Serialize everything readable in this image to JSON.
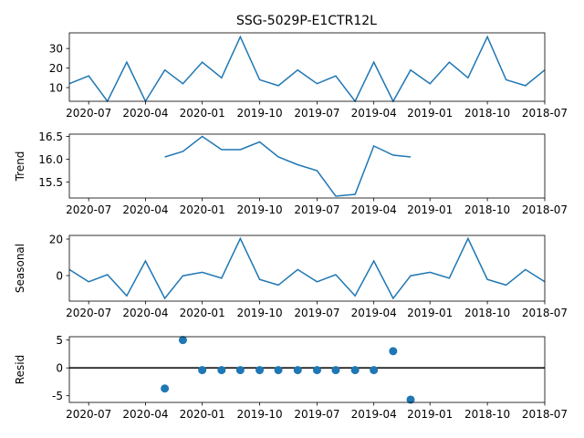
{
  "colors": {
    "series": "#1f77b4",
    "axes": "#000000",
    "zero_line": "#000000"
  },
  "chart_data": {
    "type": "line",
    "title": "SSG-5029P-E1CTR12L",
    "x_tick_labels": [
      "2020-07",
      "2020-04",
      "2020-01",
      "2019-10",
      "2019-07",
      "2019-04",
      "2019-01",
      "2018-10",
      "2018-07"
    ],
    "x_tick_dates": [
      "2020-07-01",
      "2020-04-01",
      "2020-01-01",
      "2019-10-01",
      "2019-07-01",
      "2019-04-01",
      "2019-01-01",
      "2018-10-01",
      "2018-07-01"
    ],
    "x_axis_inverted": true,
    "x": [
      "2020-08-01",
      "2020-07-01",
      "2020-06-01",
      "2020-05-01",
      "2020-04-01",
      "2020-03-01",
      "2020-02-01",
      "2020-01-01",
      "2019-12-01",
      "2019-11-01",
      "2019-10-01",
      "2019-09-01",
      "2019-08-01",
      "2019-07-01",
      "2019-06-01",
      "2019-05-01",
      "2019-04-01",
      "2019-03-01",
      "2019-02-01",
      "2019-01-01",
      "2018-12-01",
      "2018-11-01",
      "2018-10-01",
      "2018-09-01",
      "2018-08-01",
      "2018-07-01"
    ],
    "panels": [
      {
        "type": "line",
        "ylabel": "",
        "ylim": [
          3,
          38
        ],
        "yticks": [
          10,
          20,
          30
        ],
        "values": [
          12,
          16,
          3,
          23,
          3,
          19,
          12,
          23,
          15,
          36,
          14,
          11,
          19,
          12,
          16,
          3,
          23,
          3,
          19,
          12,
          23,
          15,
          36,
          14,
          11,
          19
        ]
      },
      {
        "type": "line",
        "ylabel": "Trend",
        "ylim": [
          15.15,
          16.55
        ],
        "yticks": [
          "15.5",
          "16.0",
          "16.5"
        ],
        "values": [
          null,
          null,
          null,
          null,
          null,
          16.05,
          16.17,
          16.5,
          16.21,
          16.21,
          16.38,
          16.05,
          15.88,
          15.75,
          15.19,
          15.23,
          16.29,
          16.09,
          16.05,
          null,
          null,
          null,
          null,
          null,
          null,
          null
        ]
      },
      {
        "type": "line",
        "ylabel": "Seasonal",
        "ylim": [
          -14,
          22
        ],
        "yticks": [
          0,
          20
        ],
        "values": [
          3.3,
          -3.4,
          0.5,
          -11.1,
          8,
          -12.5,
          -0.1,
          1.8,
          -1.4,
          20.3,
          -2.1,
          -5.2,
          3.3,
          -3.4,
          0.5,
          -11.1,
          8,
          -12.5,
          -0.1,
          1.8,
          -1.4,
          20.3,
          -2.1,
          -5.2,
          3.3,
          -3.4
        ]
      },
      {
        "type": "scatter",
        "ylabel": "Resid",
        "ylim": [
          -6.2,
          5.6
        ],
        "yticks": [
          -5,
          0,
          5
        ],
        "zero_line": true,
        "values": [
          null,
          null,
          null,
          null,
          null,
          -3.7,
          5,
          -0.4,
          -0.4,
          -0.4,
          -0.4,
          -0.4,
          -0.4,
          -0.4,
          -0.4,
          -0.4,
          -0.4,
          3,
          -5.7,
          null,
          null,
          null,
          null,
          null,
          null,
          null
        ]
      }
    ]
  }
}
